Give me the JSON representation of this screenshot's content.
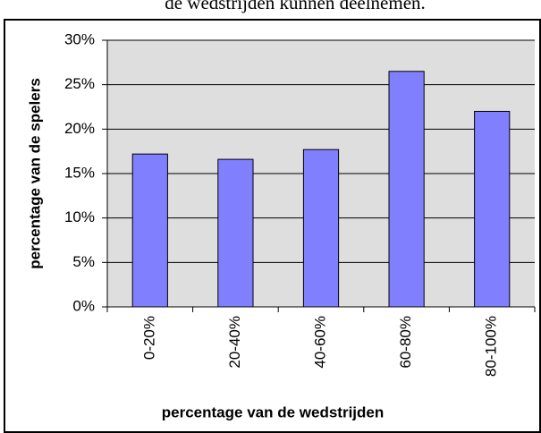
{
  "caption": "de wedstrijden kunnen deelnemen.",
  "chart_data": {
    "type": "bar",
    "x_label": "percentage van de wedstrijden",
    "y_label": "percentage van de spelers",
    "categories": [
      "0-20%",
      "20-40%",
      "40-60%",
      "60-80%",
      "80-100%"
    ],
    "values": [
      17.2,
      16.6,
      17.7,
      26.5,
      22.0
    ],
    "color": "#8080ff",
    "ylim": [
      0,
      30
    ],
    "yticks": [
      {
        "value": 0,
        "label": "0%"
      },
      {
        "value": 5,
        "label": "5%"
      },
      {
        "value": 10,
        "label": "10%"
      },
      {
        "value": 15,
        "label": "15%"
      },
      {
        "value": 20,
        "label": "20%"
      },
      {
        "value": 25,
        "label": "25%"
      },
      {
        "value": 30,
        "label": "30%"
      }
    ],
    "grid": true
  }
}
